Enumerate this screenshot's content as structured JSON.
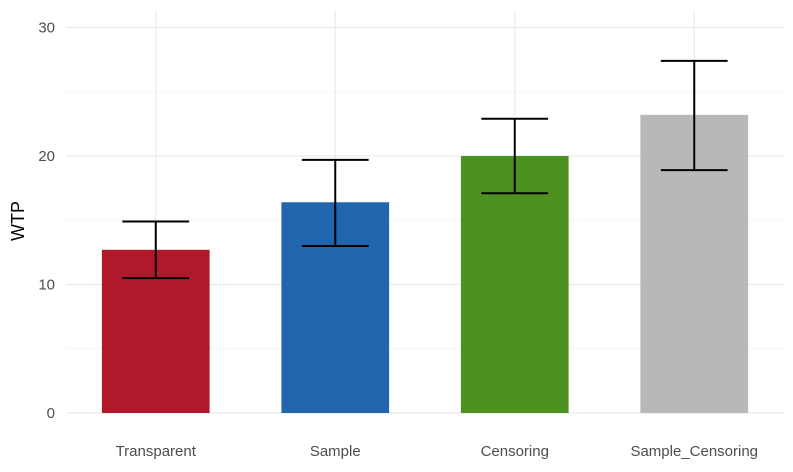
{
  "chart_data": {
    "type": "bar",
    "title": "",
    "xlabel": "",
    "ylabel": "WTP",
    "categories": [
      "Transparent",
      "Sample",
      "Censoring",
      "Sample_Censoring"
    ],
    "values": [
      12.7,
      16.4,
      20.0,
      23.2
    ],
    "error_low": [
      10.5,
      13.0,
      17.1,
      18.9
    ],
    "error_high": [
      14.9,
      19.7,
      22.9,
      27.4
    ],
    "colors": [
      "#b2182b",
      "#2166ac",
      "#4d9221",
      "#b8b8b8"
    ],
    "ylim": [
      0,
      31
    ],
    "yticks": [
      0,
      10,
      20,
      30
    ],
    "ytick_labels": [
      "0",
      "10",
      "20",
      "30"
    ],
    "grid": true,
    "legend": "none"
  }
}
